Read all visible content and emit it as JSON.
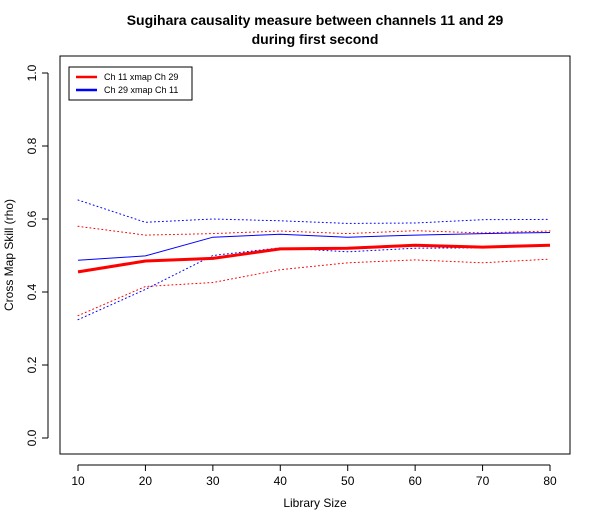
{
  "chart_data": {
    "type": "line",
    "title_line1": "Sugihara causality measure between channels  11 and 29",
    "title_line2": "during first second",
    "xlabel": "Library Size",
    "ylabel": "Cross Map Skill (rho)",
    "xlim": [
      10,
      80
    ],
    "ylim": [
      0,
      1
    ],
    "xticks": [
      10,
      20,
      30,
      40,
      50,
      60,
      70,
      80
    ],
    "yticks": [
      0.0,
      0.2,
      0.4,
      0.6,
      0.8,
      1.0
    ],
    "xtick_labels": [
      "10",
      "20",
      "30",
      "40",
      "50",
      "60",
      "70",
      "80"
    ],
    "ytick_labels": [
      "0.0",
      "0.2",
      "0.4",
      "0.6",
      "0.8",
      "1.0"
    ],
    "grid": false,
    "legend_position": "top-left",
    "x": [
      10,
      20,
      30,
      40,
      50,
      60,
      70,
      80
    ],
    "series": [
      {
        "name": "Ch 11 xmap Ch 29",
        "color": "#ff0000",
        "style": "solid-thick",
        "values": [
          0.455,
          0.485,
          0.492,
          0.518,
          0.52,
          0.528,
          0.523,
          0.528
        ],
        "upper": [
          0.58,
          0.556,
          0.56,
          0.567,
          0.56,
          0.568,
          0.562,
          0.567
        ],
        "lower": [
          0.335,
          0.415,
          0.426,
          0.461,
          0.48,
          0.488,
          0.48,
          0.49
        ]
      },
      {
        "name": "Ch 29  xmap Ch 11",
        "color": "#0000ff",
        "style": "solid-thin",
        "values": [
          0.487,
          0.499,
          0.55,
          0.558,
          0.55,
          0.556,
          0.56,
          0.563
        ],
        "upper": [
          0.652,
          0.591,
          0.6,
          0.595,
          0.588,
          0.589,
          0.598,
          0.599
        ],
        "lower": [
          0.324,
          0.407,
          0.5,
          0.521,
          0.51,
          0.52,
          0.521,
          0.527
        ]
      }
    ]
  }
}
